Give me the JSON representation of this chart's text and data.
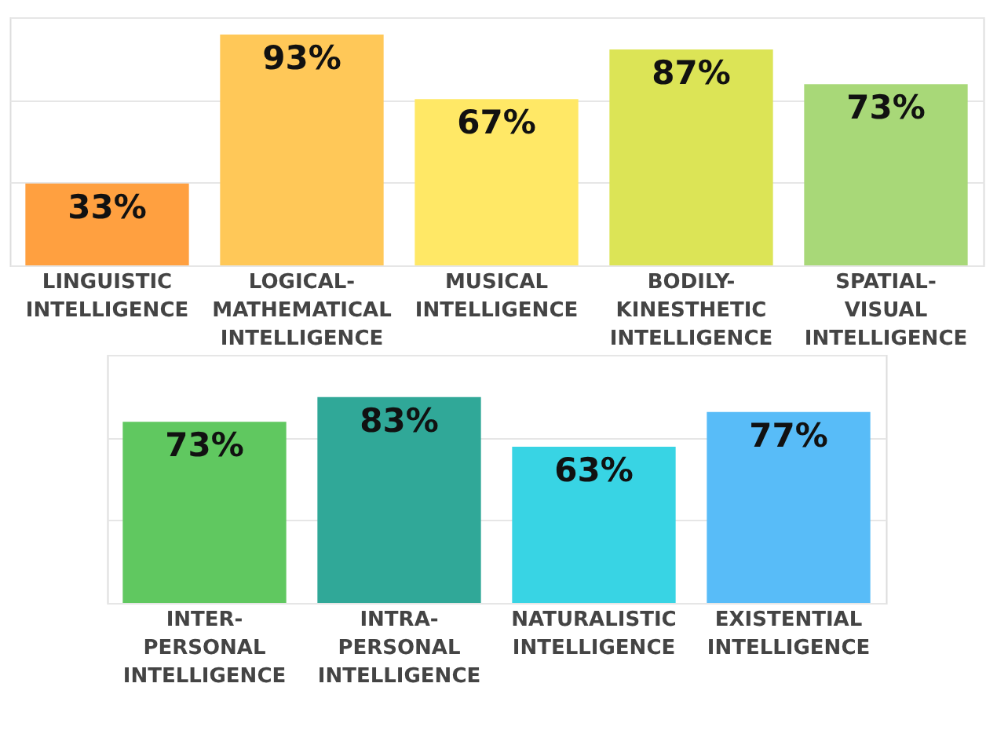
{
  "chart_data": [
    {
      "type": "bar",
      "categories": [
        "LINGUISTIC\nINTELLIGENCE",
        "LOGICAL-\nMATHEMATICAL\nINTELLIGENCE",
        "MUSICAL\nINTELLIGENCE",
        "BODILY-\nKINESTHETIC\nINTELLIGENCE",
        "SPATIAL-\nVISUAL\nINTELLIGENCE"
      ],
      "values": [
        33,
        93,
        67,
        87,
        73
      ],
      "value_labels": [
        "33%",
        "93%",
        "67%",
        "87%",
        "73%"
      ],
      "colors": [
        "#ffa040",
        "#ffc858",
        "#ffe866",
        "#dce456",
        "#a8d878"
      ],
      "ylim": [
        0,
        100
      ],
      "yticks": [
        {
          "value": 0,
          "label": null
        },
        {
          "value": 33.33,
          "label": null
        },
        {
          "value": 66.67,
          "label": null
        },
        {
          "value": 100,
          "label": null
        }
      ],
      "grid": "y",
      "tick_labels": "x"
    },
    {
      "type": "bar",
      "categories": [
        "INTER-\nPERSONAL\nINTELLIGENCE",
        "INTRA-\nPERSONAL\nINTELLIGENCE",
        "NATURALISTIC\nINTELLIGENCE",
        "EXISTENTIAL\nINTELLIGENCE"
      ],
      "values": [
        73,
        83,
        63,
        77
      ],
      "value_labels": [
        "73%",
        "83%",
        "63%",
        "77%"
      ],
      "colors": [
        "#60c860",
        "#30a898",
        "#38d4e4",
        "#58bcf8"
      ],
      "ylim": [
        0,
        100
      ],
      "yticks": [
        {
          "value": 0,
          "label": null
        },
        {
          "value": 33.33,
          "label": null
        },
        {
          "value": 66.67,
          "label": null
        },
        {
          "value": 100,
          "label": null
        }
      ],
      "grid": "y",
      "tick_labels": "x"
    }
  ]
}
